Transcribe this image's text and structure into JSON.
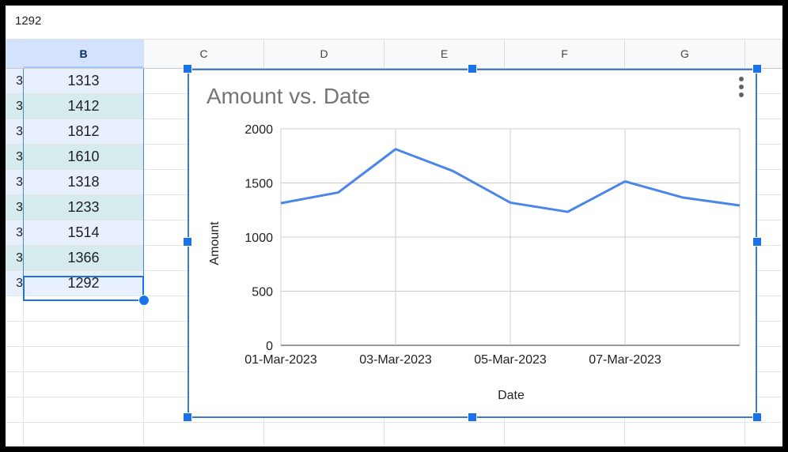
{
  "formula_bar": {
    "value": "1292"
  },
  "columns": [
    {
      "label": "",
      "selected": false
    },
    {
      "label": "B",
      "selected": true
    },
    {
      "label": "C",
      "selected": false
    },
    {
      "label": "D",
      "selected": false
    },
    {
      "label": "E",
      "selected": false
    },
    {
      "label": "F",
      "selected": false
    },
    {
      "label": "G",
      "selected": false
    }
  ],
  "column_a_visible_char": "3",
  "column_b_values": [
    "1313",
    "1412",
    "1812",
    "1610",
    "1318",
    "1233",
    "1514",
    "1366",
    "1292"
  ],
  "active_cell_value": "1292",
  "colors": {
    "accent": "#1a73e8",
    "line": "#4a86e8",
    "selected_row_light": "#e8f0fe",
    "selected_row_teal": "#d5ebee"
  },
  "chart_data": {
    "type": "line",
    "title": "Amount vs. Date",
    "xlabel": "Date",
    "ylabel": "Amount",
    "ylim": [
      0,
      2000
    ],
    "yticks": [
      0,
      500,
      1000,
      1500,
      2000
    ],
    "x": [
      "01-Mar-2023",
      "02-Mar-2023",
      "03-Mar-2023",
      "04-Mar-2023",
      "05-Mar-2023",
      "06-Mar-2023",
      "07-Mar-2023",
      "08-Mar-2023",
      "09-Mar-2023"
    ],
    "x_tick_labels": [
      "01-Mar-2023",
      "03-Mar-2023",
      "05-Mar-2023",
      "07-Mar-2023"
    ],
    "series": [
      {
        "values": [
          1313,
          1412,
          1812,
          1610,
          1318,
          1233,
          1514,
          1366,
          1292
        ]
      }
    ],
    "grid": true,
    "legend": "none"
  }
}
